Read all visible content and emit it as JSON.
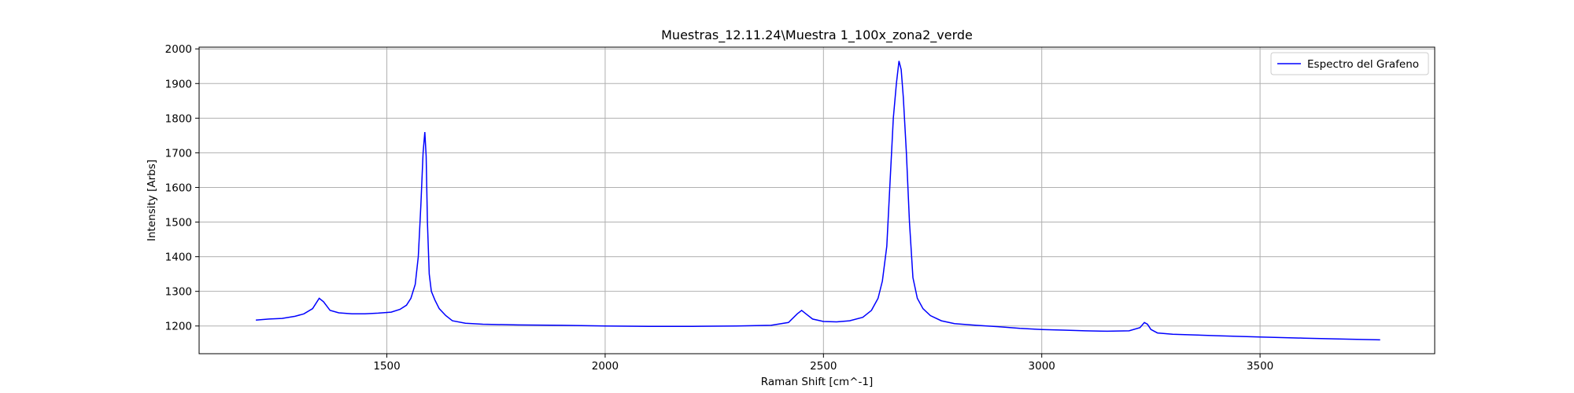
{
  "chart_data": {
    "type": "line",
    "title": "Muestras_12.11.24\\Muestra 1_100x_zona2_verde",
    "xlabel": "Raman Shift [cm^-1]",
    "ylabel": "Intensity [Arbs]",
    "xlim": [
      1070,
      3900
    ],
    "ylim": [
      1120,
      2005
    ],
    "xticks": [
      1500,
      2000,
      2500,
      3000,
      3500
    ],
    "yticks": [
      1200,
      1300,
      1400,
      1500,
      1600,
      1700,
      1800,
      1900,
      2000
    ],
    "grid": true,
    "legend_position": "top-right",
    "series": [
      {
        "name": "Espectro del Grafeno",
        "color": "#0000ff",
        "x": [
          1200,
          1230,
          1260,
          1290,
          1310,
          1330,
          1345,
          1355,
          1370,
          1390,
          1420,
          1450,
          1480,
          1510,
          1530,
          1545,
          1555,
          1565,
          1572,
          1578,
          1583,
          1587,
          1590,
          1593,
          1597,
          1602,
          1610,
          1620,
          1635,
          1650,
          1680,
          1720,
          1800,
          1900,
          2000,
          2100,
          2200,
          2300,
          2380,
          2420,
          2440,
          2450,
          2460,
          2475,
          2500,
          2530,
          2560,
          2590,
          2610,
          2625,
          2635,
          2645,
          2652,
          2660,
          2667,
          2673,
          2678,
          2683,
          2690,
          2697,
          2705,
          2715,
          2728,
          2745,
          2770,
          2800,
          2850,
          2900,
          2950,
          3000,
          3050,
          3100,
          3150,
          3200,
          3225,
          3235,
          3242,
          3250,
          3265,
          3300,
          3400,
          3500,
          3600,
          3700,
          3775
        ],
        "y": [
          1217,
          1220,
          1222,
          1228,
          1235,
          1250,
          1280,
          1270,
          1245,
          1238,
          1235,
          1235,
          1237,
          1240,
          1248,
          1260,
          1280,
          1320,
          1400,
          1550,
          1700,
          1760,
          1690,
          1500,
          1350,
          1300,
          1275,
          1250,
          1230,
          1215,
          1208,
          1205,
          1203,
          1202,
          1200,
          1199,
          1199,
          1200,
          1202,
          1210,
          1235,
          1245,
          1235,
          1220,
          1213,
          1212,
          1215,
          1225,
          1245,
          1280,
          1330,
          1430,
          1600,
          1800,
          1900,
          1965,
          1940,
          1860,
          1700,
          1500,
          1340,
          1280,
          1250,
          1230,
          1215,
          1207,
          1202,
          1198,
          1193,
          1190,
          1188,
          1186,
          1185,
          1186,
          1195,
          1210,
          1205,
          1190,
          1180,
          1176,
          1172,
          1168,
          1165,
          1162,
          1160
        ]
      }
    ]
  }
}
